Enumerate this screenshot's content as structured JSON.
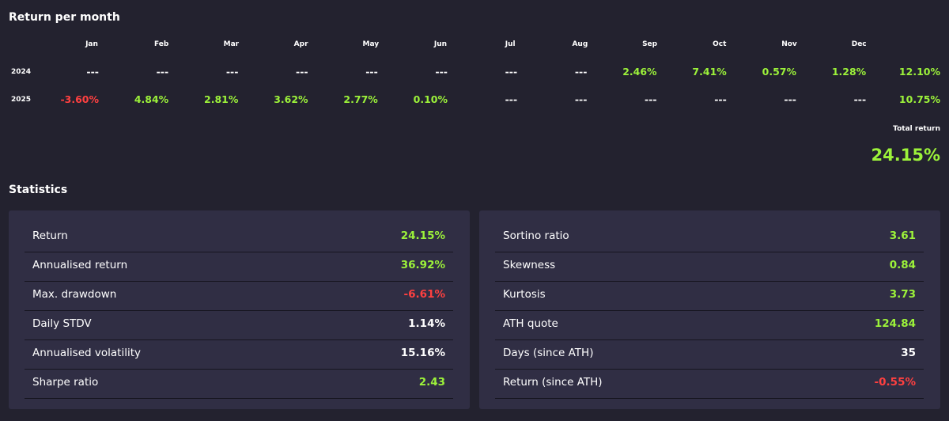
{
  "returns": {
    "title": "Return per month",
    "months": [
      "Jan",
      "Feb",
      "Mar",
      "Apr",
      "May",
      "Jun",
      "Jul",
      "Aug",
      "Sep",
      "Oct",
      "Nov",
      "Dec"
    ],
    "rows": [
      {
        "year": "2024",
        "values": [
          "---",
          "---",
          "---",
          "---",
          "---",
          "---",
          "---",
          "---",
          "2.46%",
          "7.41%",
          "0.57%",
          "1.28%"
        ],
        "total": "12.10%"
      },
      {
        "year": "2025",
        "values": [
          "-3.60%",
          "4.84%",
          "2.81%",
          "3.62%",
          "2.77%",
          "0.10%",
          "---",
          "---",
          "---",
          "---",
          "---",
          "---"
        ],
        "total": "10.75%"
      }
    ],
    "total_label": "Total return",
    "total_value": "24.15%"
  },
  "colors": {
    "positive": "#9cf23a",
    "negative": "#ff4040",
    "neutral": "#ffffff"
  },
  "statistics": {
    "title": "Statistics",
    "panels": [
      [
        {
          "label": "Return",
          "value": "24.15%",
          "color": "#9cf23a"
        },
        {
          "label": "Annualised return",
          "value": "36.92%",
          "color": "#9cf23a"
        },
        {
          "label": "Max. drawdown",
          "value": "-6.61%",
          "color": "#ff4040"
        },
        {
          "label": "Daily STDV",
          "value": "1.14%",
          "color": "#ffffff"
        },
        {
          "label": "Annualised volatility",
          "value": "15.16%",
          "color": "#ffffff"
        },
        {
          "label": "Sharpe ratio",
          "value": "2.43",
          "color": "#9cf23a"
        }
      ],
      [
        {
          "label": "Sortino ratio",
          "value": "3.61",
          "color": "#9cf23a"
        },
        {
          "label": "Skewness",
          "value": "0.84",
          "color": "#9cf23a"
        },
        {
          "label": "Kurtosis",
          "value": "3.73",
          "color": "#9cf23a"
        },
        {
          "label": "ATH quote",
          "value": "124.84",
          "color": "#9cf23a"
        },
        {
          "label": "Days (since ATH)",
          "value": "35",
          "color": "#ffffff"
        },
        {
          "label": "Return (since ATH)",
          "value": "-0.55%",
          "color": "#ff4040"
        }
      ]
    ]
  }
}
